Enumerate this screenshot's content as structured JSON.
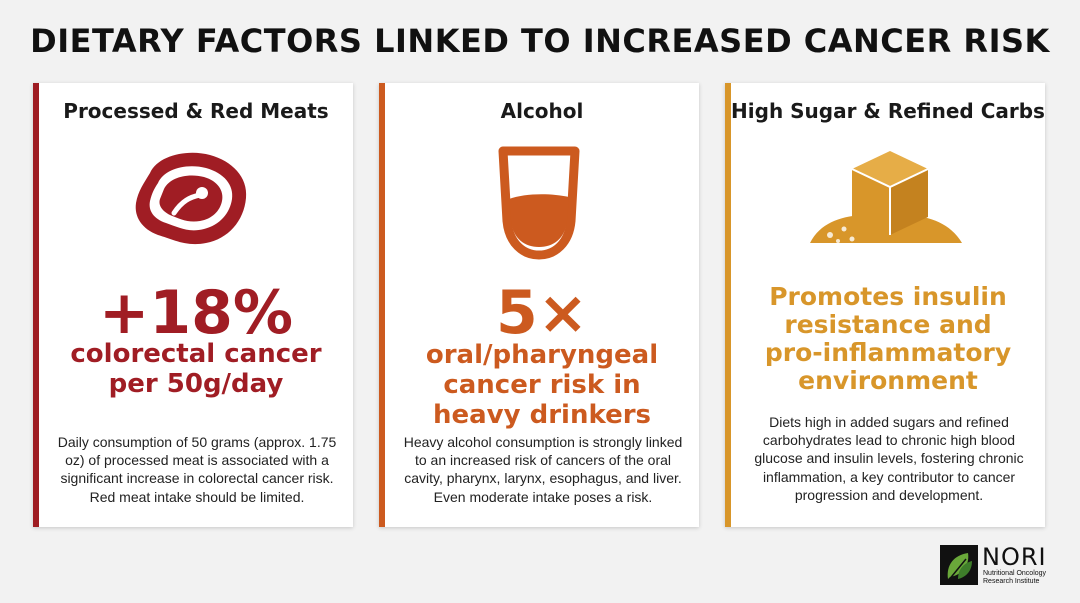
{
  "title": "DIETARY FACTORS LINKED TO INCREASED CANCER RISK",
  "cards": [
    {
      "heading": "Processed & Red Meats",
      "icon": "steak-icon",
      "stat": "+18%",
      "subtitle_lines": [
        "colorectal cancer",
        "per 50g/day"
      ],
      "description": "Daily consumption of 50 grams (approx. 1.75 oz) of processed meat is associated with a significant increase in colorectal cancer risk. Red meat intake should be limited.",
      "color": "#a01d24"
    },
    {
      "heading": "Alcohol",
      "icon": "glass-icon",
      "stat": "5×",
      "subtitle_lines": [
        "oral/pharyngeal",
        "cancer risk in",
        "heavy drinkers"
      ],
      "description": "Heavy alcohol consumption is strongly linked to an increased risk of cancers of the oral cavity, pharynx, larynx, esophagus, and liver. Even moderate intake poses a risk.",
      "color": "#cc5a1f"
    },
    {
      "heading": "High Sugar & Refined Carbs",
      "icon": "sugar-cube-icon",
      "subtitle_lines": [
        "Promotes insulin",
        "resistance and",
        "pro-inflammatory",
        "environment"
      ],
      "description": "Diets high in added sugars and refined carbohydrates lead to chronic high blood glucose and insulin levels, fostering chronic inflammation, a key contributor to cancer progression and development.",
      "color": "#d8962a"
    }
  ],
  "logo": {
    "name": "NORI",
    "tagline_lines": [
      "Nutritional Oncology",
      "Research Institute"
    ],
    "icon": "leaf-icon"
  }
}
